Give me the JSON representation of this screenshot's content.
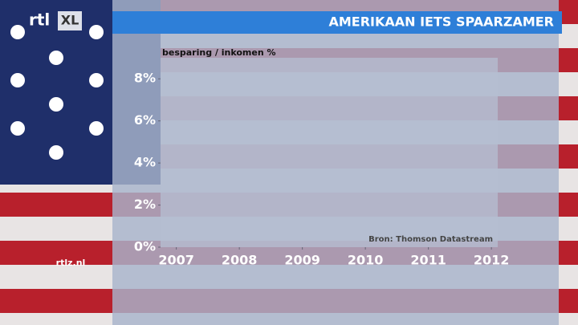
{
  "chart_data": {
    "type": "line",
    "title": "AMERIKAAN IETS SPAARZAMER",
    "y_label": "besparing / inkomen %",
    "source": "Bron: Thomson Datastream",
    "xlim": [
      2006.75,
      2012.1
    ],
    "xticks": [
      2007,
      2008,
      2009,
      2010,
      2011,
      2012
    ],
    "ylim": [
      0,
      9
    ],
    "yticks": [
      {
        "value": 0,
        "label": "0%"
      },
      {
        "value": 2,
        "label": "2%"
      },
      {
        "value": 4,
        "label": "4%"
      },
      {
        "value": 6,
        "label": "6%"
      },
      {
        "value": 8,
        "label": "8%"
      }
    ]
  },
  "logo": "rtl",
  "logo_badge": "XL",
  "website": "rtlz.nl"
}
